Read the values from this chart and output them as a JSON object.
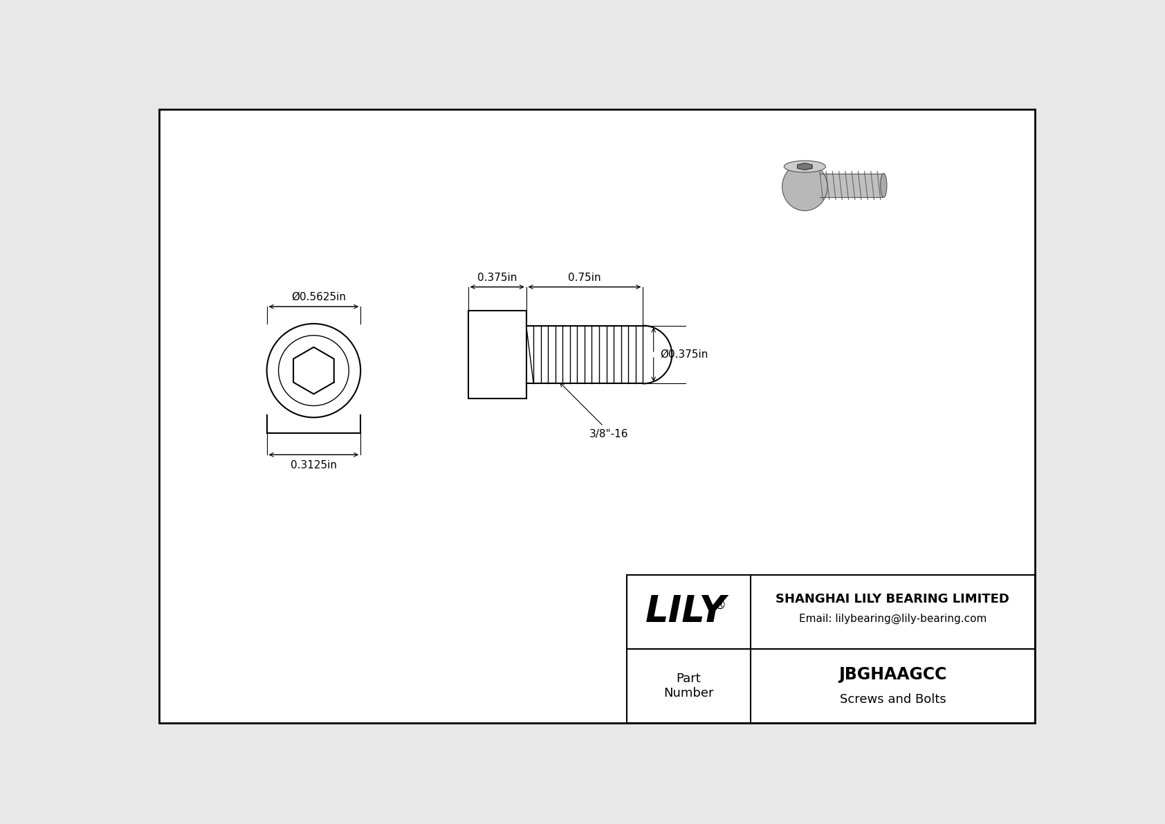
{
  "bg_color": "#e8e8e8",
  "drawing_bg": "#ffffff",
  "line_color": "#000000",
  "border_color": "#000000",
  "title": "JBGHAAGCC",
  "subtitle": "Screws and Bolts",
  "company_name": "SHANGHAI LILY BEARING LIMITED",
  "company_email": "Email: lilybearing@lily-bearing.com",
  "part_number_label": "Part\nNumber",
  "logo_text": "LILY",
  "logo_registered": "®",
  "dim_head_diameter": "Ø0.5625in",
  "dim_head_height": "0.3125in",
  "dim_shank_length": "0.375in",
  "dim_thread_length": "0.75in",
  "dim_thread_diameter": "Ø0.375in",
  "dim_thread_spec": "3/8\"-16"
}
